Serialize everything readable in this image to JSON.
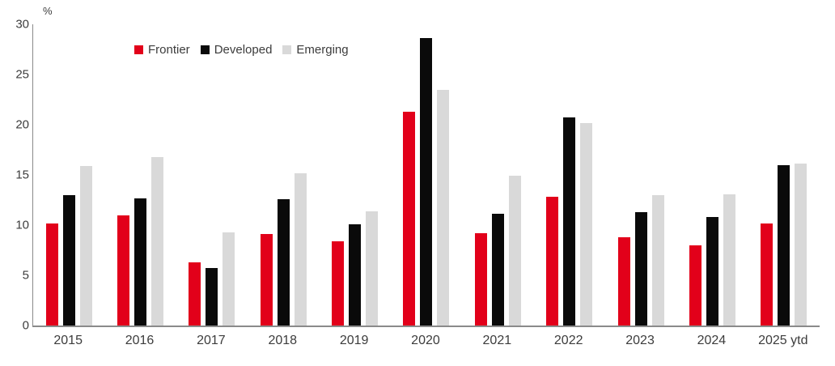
{
  "chart_data": {
    "type": "bar",
    "title": "",
    "unit_label": "%",
    "categories": [
      "2015",
      "2016",
      "2017",
      "2018",
      "2019",
      "2020",
      "2021",
      "2022",
      "2023",
      "2024",
      "2025 ytd"
    ],
    "series": [
      {
        "name": "Frontier",
        "color": "#e2001a",
        "values": [
          10.2,
          11.0,
          6.3,
          9.1,
          8.4,
          21.3,
          9.2,
          12.8,
          8.8,
          8.0,
          10.2
        ]
      },
      {
        "name": "Developed",
        "color": "#0a0a0a",
        "values": [
          13.0,
          12.7,
          5.7,
          12.6,
          10.1,
          28.6,
          11.1,
          20.7,
          11.3,
          10.8,
          16.0
        ]
      },
      {
        "name": "Emerging",
        "color": "#d9d9d9",
        "values": [
          15.9,
          16.8,
          9.3,
          15.2,
          11.4,
          23.5,
          14.9,
          20.2,
          13.0,
          13.1,
          16.1
        ]
      }
    ],
    "y_axis": {
      "min": 0,
      "max": 30,
      "tick_step": 5,
      "ticks": [
        0,
        5,
        10,
        15,
        20,
        25,
        30
      ]
    },
    "legend_position": "top-left-inset",
    "grid": false
  },
  "colors": {
    "axis": "#8a8a8a",
    "text": "#3c3c3c",
    "background": "#ffffff"
  }
}
